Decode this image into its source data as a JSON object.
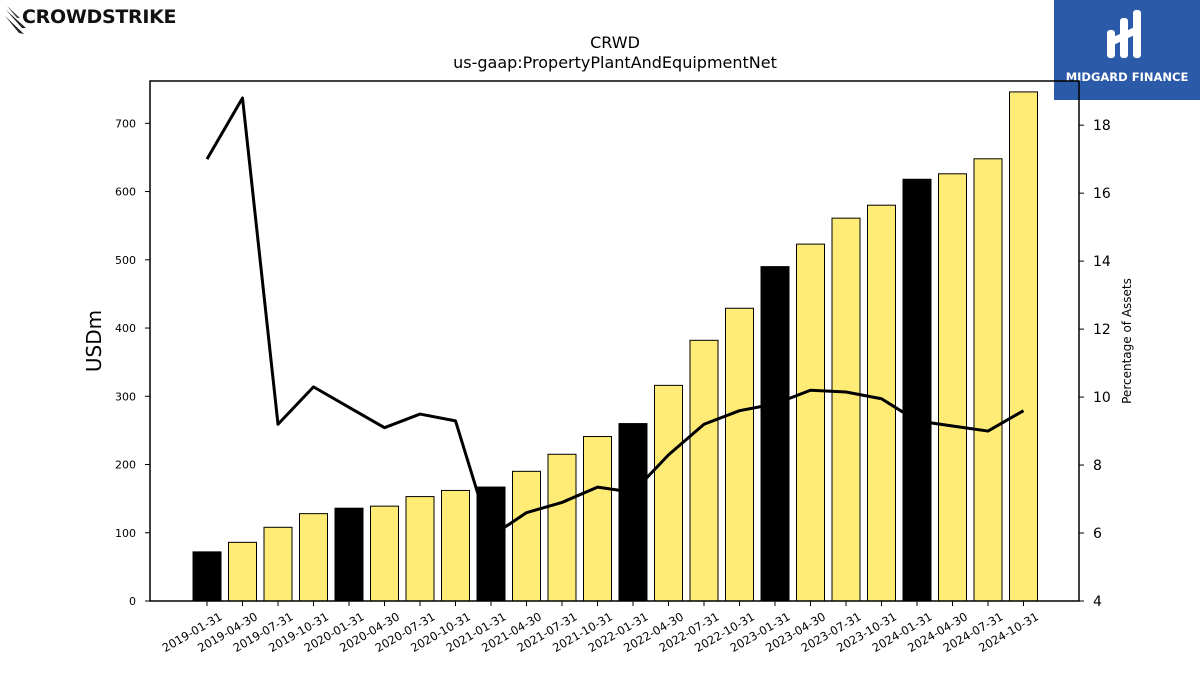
{
  "logos": {
    "left_text": "CROWDSTRIKE",
    "right_text": "MIDGARD FINANCE"
  },
  "colors": {
    "bar_default": "#ffec77",
    "bar_highlight": "#000000",
    "line": "#000000",
    "brand_blue": "#2b5aa8"
  },
  "chart_data": {
    "type": "bar",
    "title": "CRWD",
    "subtitle": "us-gaap:PropertyPlantAndEquipmentNet",
    "ylabel": "USDm",
    "y2label": "Percentage of Assets",
    "ylim": [
      0,
      762
    ],
    "y2lim": [
      4,
      19.3
    ],
    "yticks": [
      0,
      100,
      200,
      300,
      400,
      500,
      600,
      700
    ],
    "y2ticks": [
      4,
      6,
      8,
      10,
      12,
      14,
      16,
      18
    ],
    "categories": [
      "2019-01-31",
      "2019-04-30",
      "2019-07-31",
      "2019-10-31",
      "2020-01-31",
      "2020-04-30",
      "2020-07-31",
      "2020-10-31",
      "2021-01-31",
      "2021-04-30",
      "2021-07-31",
      "2021-10-31",
      "2022-01-31",
      "2022-04-30",
      "2022-07-31",
      "2022-10-31",
      "2023-01-31",
      "2023-04-30",
      "2023-07-31",
      "2023-10-31",
      "2024-01-31",
      "2024-04-30",
      "2024-07-31",
      "2024-10-31"
    ],
    "highlighted": [
      true,
      false,
      false,
      false,
      true,
      false,
      false,
      false,
      true,
      false,
      false,
      false,
      true,
      false,
      false,
      false,
      true,
      false,
      false,
      false,
      true,
      false,
      false,
      false
    ],
    "series": [
      {
        "type": "bar",
        "axis": "left",
        "values": [
          72,
          86,
          108,
          128,
          136,
          139,
          153,
          162,
          167,
          190,
          215,
          241,
          260,
          316,
          382,
          429,
          490,
          523,
          561,
          580,
          618,
          626,
          648,
          746
        ]
      },
      {
        "type": "line",
        "axis": "right",
        "values": [
          17.0,
          18.8,
          9.2,
          10.3,
          9.7,
          9.1,
          9.5,
          9.3,
          5.9,
          6.6,
          6.9,
          7.35,
          7.2,
          8.3,
          9.2,
          9.6,
          9.8,
          10.2,
          10.15,
          9.95,
          9.3,
          9.15,
          9.0,
          9.6
        ]
      }
    ],
    "grid": false
  }
}
